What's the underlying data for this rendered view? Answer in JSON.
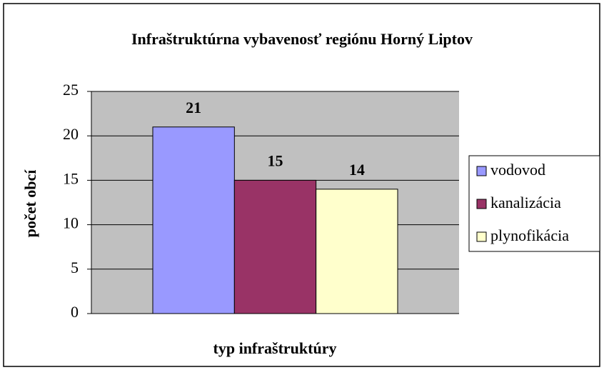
{
  "chart_data": {
    "type": "bar",
    "title": "Infraštruktúrna vybavenosť regiónu Horný Liptov",
    "x_label": "typ infraštruktúry",
    "y_label": "počet obcí",
    "categories": [
      null
    ],
    "series": [
      {
        "name": "vodovod",
        "color": "#9999ff",
        "values": [
          21
        ]
      },
      {
        "name": "kanalizácia",
        "color": "#993366",
        "values": [
          15
        ]
      },
      {
        "name": "plynofikácia",
        "color": "#ffffcc",
        "values": [
          14
        ]
      }
    ],
    "ylim": [
      0,
      25
    ],
    "yticks": [
      0,
      5,
      10,
      15,
      20,
      25
    ],
    "grid": true,
    "legend": "right"
  }
}
